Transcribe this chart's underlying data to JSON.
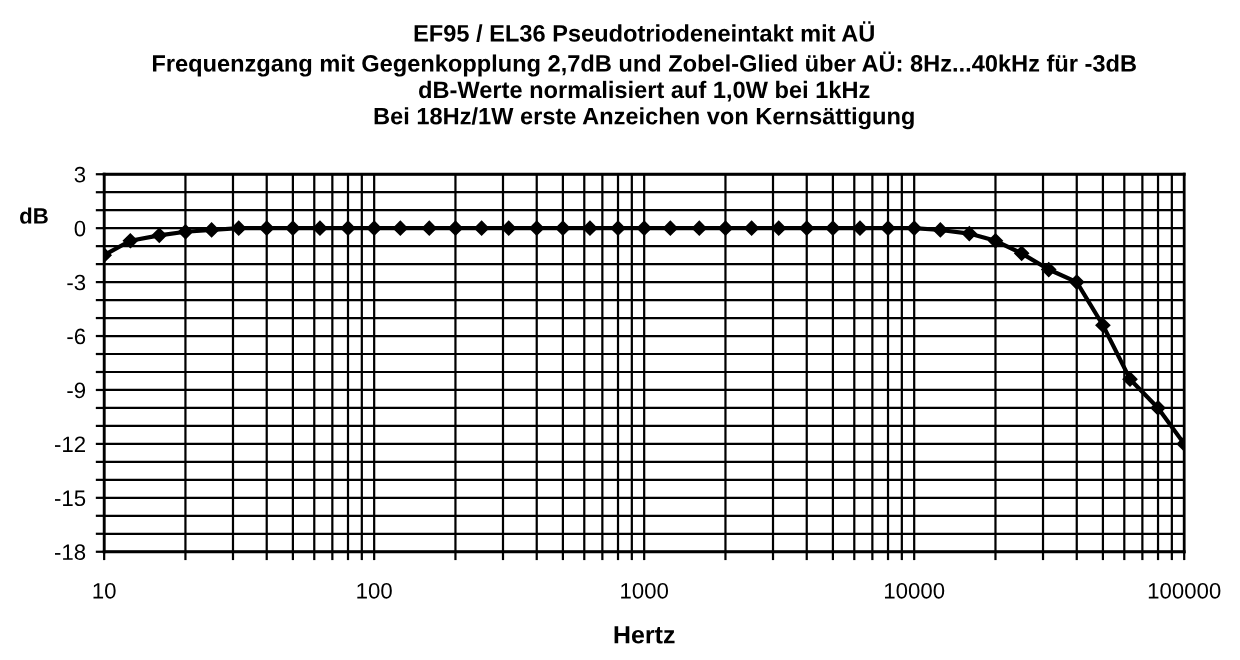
{
  "chart_data": {
    "type": "line",
    "title": "EF95 / EL36 Pseudotriodeneintakt mit AÜ\nFrequenzgang mit Gegenkopplung 2,7dB und Zobel-Glied über AÜ: 8Hz...40kHz für -3dB\ndB-Werte normalisiert auf 1,0W bei 1kHz\nBei 18Hz/1W erste Anzeichen von Kernsättigung",
    "xlabel": "Hertz",
    "ylabel": "dB",
    "log": "x",
    "x": [
      10,
      12.5,
      16,
      20,
      25,
      31.5,
      40,
      50,
      63,
      80,
      100,
      125,
      160,
      200,
      250,
      315,
      400,
      500,
      630,
      800,
      1000,
      1250,
      1600,
      2000,
      2500,
      3150,
      4000,
      5000,
      6300,
      8000,
      10000,
      12500,
      16000,
      20000,
      25000,
      31500,
      40000,
      50000,
      63000,
      80000,
      100000
    ],
    "series": [
      {
        "color": "#000000",
        "values": [
          -1.5,
          -0.7,
          -0.4,
          -0.2,
          -0.1,
          0,
          0,
          0,
          0,
          0,
          0,
          0,
          0,
          0,
          0,
          0,
          0,
          0,
          0,
          0,
          0,
          0,
          0,
          0,
          0,
          0,
          0,
          0,
          0,
          0,
          0,
          -0.1,
          -0.3,
          -0.7,
          -1.4,
          -2.3,
          -3.0,
          -5.4,
          -8.4,
          -10.0,
          -12.0
        ]
      }
    ],
    "marker": "diamond",
    "line_style": "solid",
    "grid": true,
    "legend": false,
    "xlim": [
      10,
      100000
    ],
    "ylim": [
      -18,
      3
    ],
    "xticks": [
      10,
      {
        "value": 20,
        "label": null
      },
      {
        "value": 30,
        "label": null
      },
      {
        "value": 40,
        "label": null
      },
      {
        "value": 50,
        "label": null
      },
      {
        "value": 60,
        "label": null
      },
      {
        "value": 70,
        "label": null
      },
      {
        "value": 80,
        "label": null
      },
      {
        "value": 90,
        "label": null
      },
      100,
      {
        "value": 200,
        "label": null
      },
      {
        "value": 300,
        "label": null
      },
      {
        "value": 400,
        "label": null
      },
      {
        "value": 500,
        "label": null
      },
      {
        "value": 600,
        "label": null
      },
      {
        "value": 700,
        "label": null
      },
      {
        "value": 800,
        "label": null
      },
      {
        "value": 900,
        "label": null
      },
      1000,
      {
        "value": 2000,
        "label": null
      },
      {
        "value": 3000,
        "label": null
      },
      {
        "value": 4000,
        "label": null
      },
      {
        "value": 5000,
        "label": null
      },
      {
        "value": 6000,
        "label": null
      },
      {
        "value": 7000,
        "label": null
      },
      {
        "value": 8000,
        "label": null
      },
      {
        "value": 9000,
        "label": null
      },
      10000,
      {
        "value": 20000,
        "label": null
      },
      {
        "value": 30000,
        "label": null
      },
      {
        "value": 40000,
        "label": null
      },
      {
        "value": 50000,
        "label": null
      },
      {
        "value": 60000,
        "label": null
      },
      {
        "value": 70000,
        "label": null
      },
      {
        "value": 80000,
        "label": null
      },
      {
        "value": 90000,
        "label": null
      },
      100000
    ],
    "yticks": [
      -18,
      {
        "value": -17,
        "label": null
      },
      {
        "value": -16,
        "label": null
      },
      -15,
      {
        "value": -14,
        "label": null
      },
      {
        "value": -13,
        "label": null
      },
      -12,
      {
        "value": -11,
        "label": null
      },
      {
        "value": -10,
        "label": null
      },
      -9,
      {
        "value": -8,
        "label": null
      },
      {
        "value": -7,
        "label": null
      },
      -6,
      {
        "value": -5,
        "label": null
      },
      {
        "value": -4,
        "label": null
      },
      -3,
      {
        "value": -2,
        "label": null
      },
      {
        "value": -1,
        "label": null
      },
      0,
      {
        "value": 1,
        "label": null
      },
      {
        "value": 2,
        "label": null
      },
      3
    ]
  }
}
